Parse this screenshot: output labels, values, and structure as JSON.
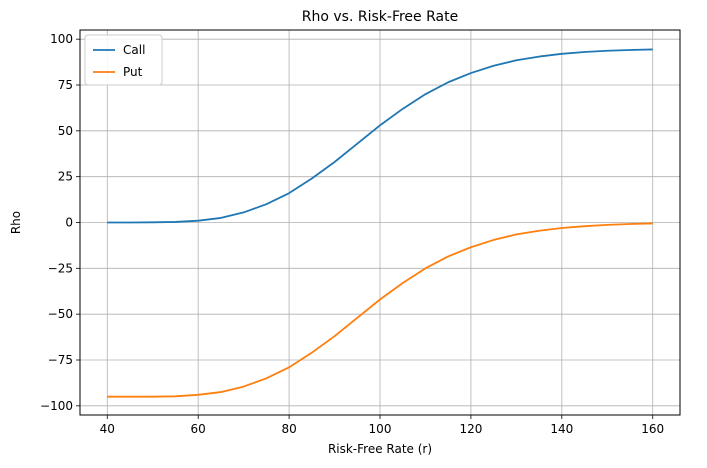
{
  "chart_data": {
    "type": "line",
    "title": "Rho vs. Risk-Free Rate",
    "xlabel": "Risk-Free Rate (r)",
    "ylabel": "Rho",
    "xlim": [
      34,
      166
    ],
    "ylim": [
      -105,
      105
    ],
    "xticks": [
      40,
      60,
      80,
      100,
      120,
      140,
      160
    ],
    "yticks": [
      -100,
      -75,
      -50,
      -25,
      0,
      25,
      50,
      75,
      100
    ],
    "xtick_labels": [
      "40",
      "60",
      "80",
      "100",
      "120",
      "140",
      "160"
    ],
    "ytick_labels": [
      "−100",
      "−75",
      "−50",
      "−25",
      "0",
      "25",
      "50",
      "75",
      "100"
    ],
    "grid": true,
    "legend_position": "top-left",
    "series": [
      {
        "name": "Call",
        "color": "#1f77b4",
        "x": [
          40,
          45,
          50,
          55,
          60,
          65,
          70,
          75,
          80,
          85,
          90,
          95,
          100,
          105,
          110,
          115,
          120,
          125,
          130,
          135,
          140,
          145,
          150,
          155,
          160
        ],
        "y": [
          0.0,
          0.0,
          0.1,
          0.3,
          1.0,
          2.5,
          5.5,
          10.0,
          16.0,
          24.0,
          33.0,
          43.0,
          53.0,
          62.0,
          70.0,
          76.5,
          81.5,
          85.5,
          88.5,
          90.5,
          92.0,
          93.0,
          93.7,
          94.1,
          94.4
        ]
      },
      {
        "name": "Put",
        "color": "#ff7f0e",
        "x": [
          40,
          45,
          50,
          55,
          60,
          65,
          70,
          75,
          80,
          85,
          90,
          95,
          100,
          105,
          110,
          115,
          120,
          125,
          130,
          135,
          140,
          145,
          150,
          155,
          160
        ],
        "y": [
          -95.0,
          -95.0,
          -95.0,
          -94.8,
          -94.0,
          -92.5,
          -89.5,
          -85.0,
          -79.0,
          -71.0,
          -62.0,
          -52.0,
          -42.0,
          -33.0,
          -25.0,
          -18.5,
          -13.5,
          -9.5,
          -6.5,
          -4.5,
          -3.0,
          -2.0,
          -1.3,
          -0.8,
          -0.5
        ]
      }
    ]
  }
}
